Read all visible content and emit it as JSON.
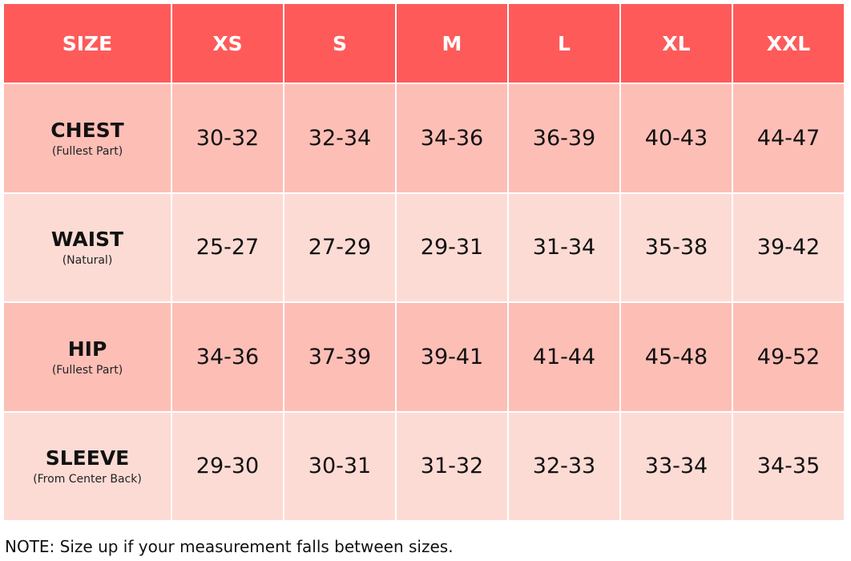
{
  "table": {
    "header": [
      "SIZE",
      "XS",
      "S",
      "M",
      "L",
      "XL",
      "XXL"
    ],
    "rows": [
      {
        "label": "CHEST",
        "sublabel": "(Fullest Part)",
        "values": [
          "30-32",
          "32-34",
          "34-36",
          "36-39",
          "40-43",
          "44-47"
        ]
      },
      {
        "label": "WAIST",
        "sublabel": "(Natural)",
        "values": [
          "25-27",
          "27-29",
          "29-31",
          "31-34",
          "35-38",
          "39-42"
        ]
      },
      {
        "label": "HIP",
        "sublabel": "(Fullest Part)",
        "values": [
          "34-36",
          "37-39",
          "39-41",
          "41-44",
          "45-48",
          "49-52"
        ]
      },
      {
        "label": "SLEEVE",
        "sublabel": "(From Center Back)",
        "values": [
          "29-30",
          "30-31",
          "31-32",
          "32-33",
          "33-34",
          "34-35"
        ]
      }
    ]
  },
  "note": "NOTE: Size up if your measurement falls between sizes."
}
